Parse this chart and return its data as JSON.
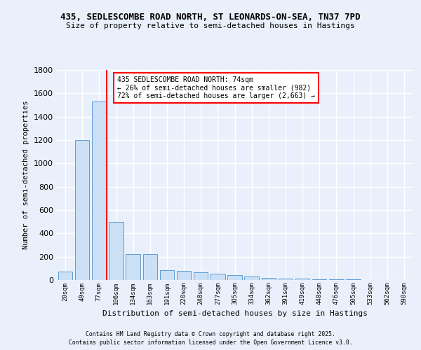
{
  "title_line1": "435, SEDLESCOMBE ROAD NORTH, ST LEONARDS-ON-SEA, TN37 7PD",
  "title_line2": "Size of property relative to semi-detached houses in Hastings",
  "xlabel": "Distribution of semi-detached houses by size in Hastings",
  "ylabel": "Number of semi-detached properties",
  "categories": [
    "20sqm",
    "49sqm",
    "77sqm",
    "106sqm",
    "134sqm",
    "163sqm",
    "191sqm",
    "220sqm",
    "248sqm",
    "277sqm",
    "305sqm",
    "334sqm",
    "362sqm",
    "391sqm",
    "419sqm",
    "448sqm",
    "476sqm",
    "505sqm",
    "533sqm",
    "562sqm",
    "590sqm"
  ],
  "values": [
    75,
    1200,
    1530,
    500,
    220,
    220,
    85,
    80,
    65,
    55,
    45,
    30,
    20,
    15,
    10,
    8,
    5,
    4,
    3,
    2,
    2
  ],
  "bar_color": "#cce0f5",
  "bar_edge_color": "#5b9bd5",
  "red_line_index": 2,
  "annotation_text_line1": "435 SEDLESCOMBE ROAD NORTH: 74sqm",
  "annotation_text_line2": "← 26% of semi-detached houses are smaller (982)",
  "annotation_text_line3": "72% of semi-detached houses are larger (2,663) →",
  "ylim": [
    0,
    1800
  ],
  "background_color": "#eaf0fb",
  "plot_bg_color": "#eaf0fb",
  "grid_color": "#ffffff",
  "footer_line1": "Contains HM Land Registry data © Crown copyright and database right 2025.",
  "footer_line2": "Contains public sector information licensed under the Open Government Licence v3.0."
}
